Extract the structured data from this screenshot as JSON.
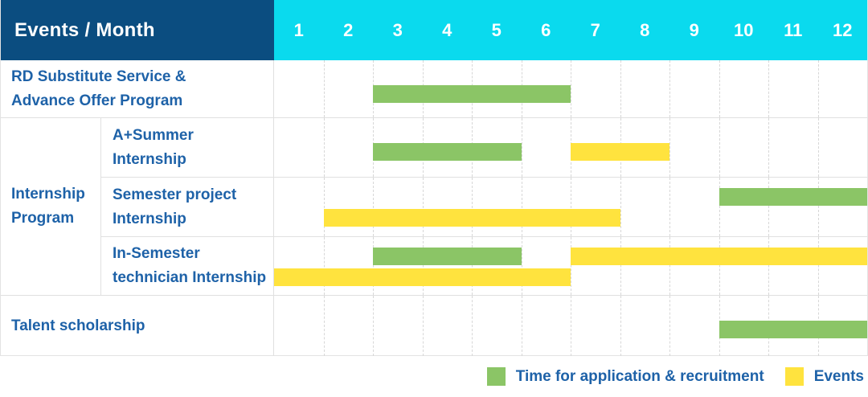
{
  "header": {
    "title": "Events / Month",
    "months": [
      "1",
      "2",
      "3",
      "4",
      "5",
      "6",
      "7",
      "8",
      "9",
      "10",
      "11",
      "12"
    ]
  },
  "rows": {
    "rd_substitute": {
      "label": "RD Substitute Service & Advance Offer Program",
      "lines": [
        "RD Substitute Service &",
        "Advance Offer Program"
      ]
    },
    "internship_group": {
      "label": "Internship Program",
      "lines": [
        "Internship",
        "Program"
      ]
    },
    "a_plus_summer": {
      "label": "A+Summer Internship",
      "lines": [
        "A+Summer",
        "Internship"
      ]
    },
    "semester_project": {
      "label": "Semester project Internship",
      "lines": [
        "Semester project",
        "Internship"
      ]
    },
    "in_semester_technician": {
      "label": "In-Semester technician Internship",
      "lines": [
        "In-Semester",
        "technician Internship"
      ]
    },
    "talent_scholarship": {
      "label": "Talent scholarship",
      "lines": [
        "Talent scholarship"
      ]
    }
  },
  "legend": {
    "items": [
      {
        "key": "application",
        "label": "Time for application & recruitment",
        "color": "#8BC566"
      },
      {
        "key": "event",
        "label": "Events",
        "color": "#FFE33E"
      }
    ]
  },
  "colors": {
    "header_navy": "#0B4D80",
    "header_cyan": "#0ADAEE",
    "label_blue": "#1E62A8",
    "application_green": "#8BC566",
    "event_yellow": "#FFE33E",
    "grid_border": "#E0E0E0"
  },
  "chart_data": {
    "type": "bar",
    "subtype": "gantt-timeline",
    "title": "Events / Month",
    "x_axis": {
      "label": "Month",
      "ticks": [
        "1",
        "2",
        "3",
        "4",
        "5",
        "6",
        "7",
        "8",
        "9",
        "10",
        "11",
        "12"
      ],
      "range": [
        1,
        12
      ]
    },
    "legend_entries": [
      "Time for application & recruitment",
      "Events"
    ],
    "legend_position": "bottom-right",
    "grid": "vertical-dashed-per-month",
    "lanes": [
      {
        "row": "RD Substitute Service & Advance Offer Program",
        "bars": [
          {
            "type": "application",
            "start": 3,
            "end": 6,
            "lane": "middle"
          }
        ]
      },
      {
        "row": "A+Summer Internship",
        "bars": [
          {
            "type": "application",
            "start": 3,
            "end": 5,
            "lane": "middle"
          },
          {
            "type": "event",
            "start": 7,
            "end": 8,
            "lane": "middle"
          }
        ]
      },
      {
        "row": "Semester project Internship",
        "bars": [
          {
            "type": "application",
            "start": 10,
            "end": 12,
            "lane": "top"
          },
          {
            "type": "event",
            "start": 2,
            "end": 7,
            "lane": "bottom"
          }
        ]
      },
      {
        "row": "In-Semester technician Internship",
        "bars": [
          {
            "type": "application",
            "start": 3,
            "end": 5,
            "lane": "top"
          },
          {
            "type": "event",
            "start": 7,
            "end": 12,
            "lane": "top"
          },
          {
            "type": "event",
            "start": 1,
            "end": 6,
            "lane": "bottom"
          }
        ]
      },
      {
        "row": "Talent scholarship",
        "bars": [
          {
            "type": "application",
            "start": 10,
            "end": 12,
            "lane": "middle"
          }
        ]
      }
    ]
  }
}
